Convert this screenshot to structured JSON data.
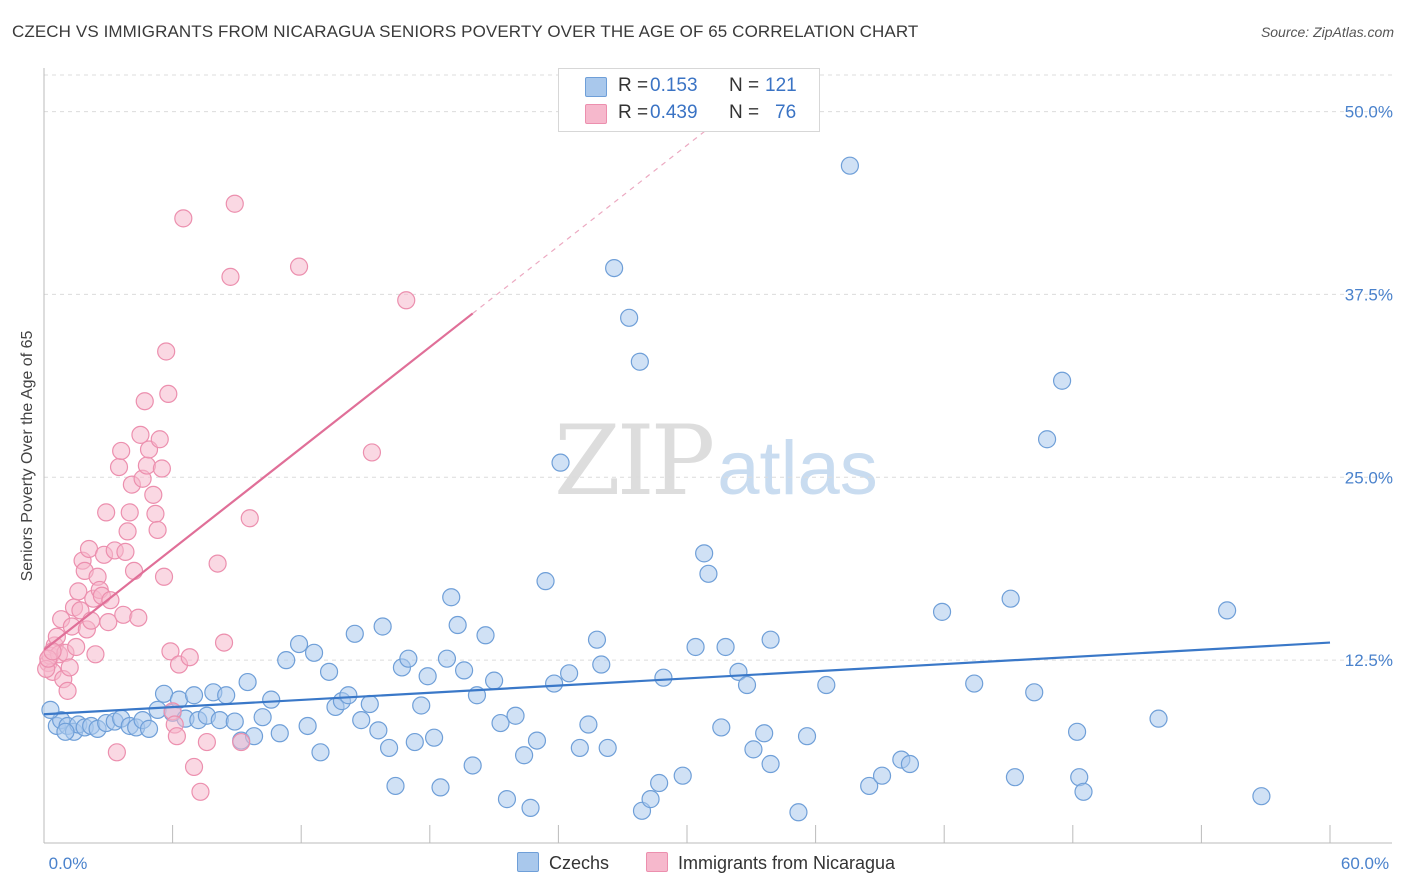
{
  "header": {
    "title": "CZECH VS IMMIGRANTS FROM NICARAGUA SENIORS POVERTY OVER THE AGE OF 65 CORRELATION CHART",
    "source": "Source: ZipAtlas.com"
  },
  "watermark": {
    "zip": "ZIP",
    "atlas": "atlas"
  },
  "legend": {
    "rows": [
      {
        "r_label": "R =",
        "r_value": "0.153",
        "n_label": "N =",
        "n_value": "121"
      },
      {
        "r_label": "R =",
        "r_value": "0.439",
        "n_label": "N =",
        "n_value": "76"
      }
    ]
  },
  "colors": {
    "blue_fill": "#a9c8ec",
    "blue_stroke": "#6f9fd8",
    "blue_line": "#3a78c8",
    "pink_fill": "#f6b8cc",
    "pink_stroke": "#ec8fae",
    "pink_line": "#e06f98",
    "grid": "#dcdcdc",
    "tick_text": "#4a82cc"
  },
  "chart_data": {
    "type": "scatter",
    "title": "CZECH VS IMMIGRANTS FROM NICARAGUA SENIORS POVERTY OVER THE AGE OF 65 CORRELATION CHART",
    "ylabel": "Seniors Poverty Over the Age of 65",
    "xlabel": "",
    "xlim": [
      0,
      60
    ],
    "ylim": [
      0,
      52.5
    ],
    "x_tick_labels": [
      "0.0%",
      "60.0%"
    ],
    "y_ticks": [
      12.5,
      25.0,
      37.5,
      50.0
    ],
    "y_tick_labels": [
      "12.5%",
      "25.0%",
      "37.5%",
      "50.0%"
    ],
    "grid": true,
    "legend_position": "bottom",
    "series": [
      {
        "name": "Czechs",
        "color": "#a9c8ec",
        "trend": {
          "x": [
            0,
            60
          ],
          "y": [
            8.8,
            13.7
          ]
        },
        "points": [
          [
            0.6,
            8.0
          ],
          [
            0.8,
            8.4
          ],
          [
            1.1,
            8.0
          ],
          [
            1.4,
            7.6
          ],
          [
            1.6,
            8.1
          ],
          [
            1.9,
            7.9
          ],
          [
            2.2,
            8.0
          ],
          [
            2.5,
            7.8
          ],
          [
            2.9,
            8.2
          ],
          [
            3.3,
            8.3
          ],
          [
            3.6,
            8.5
          ],
          [
            4.0,
            8.0
          ],
          [
            4.3,
            7.9
          ],
          [
            4.6,
            8.4
          ],
          [
            4.9,
            7.8
          ],
          [
            5.3,
            9.1
          ],
          [
            5.6,
            10.2
          ],
          [
            6.0,
            8.9
          ],
          [
            6.3,
            9.8
          ],
          [
            6.6,
            8.5
          ],
          [
            7.0,
            10.1
          ],
          [
            7.2,
            8.4
          ],
          [
            7.6,
            8.7
          ],
          [
            7.9,
            10.3
          ],
          [
            8.2,
            8.4
          ],
          [
            8.5,
            10.1
          ],
          [
            8.9,
            8.3
          ],
          [
            9.2,
            7.0
          ],
          [
            9.5,
            11.0
          ],
          [
            9.8,
            7.3
          ],
          [
            10.2,
            8.6
          ],
          [
            10.6,
            9.8
          ],
          [
            11.0,
            7.5
          ],
          [
            11.3,
            12.5
          ],
          [
            11.9,
            13.6
          ],
          [
            12.3,
            8.0
          ],
          [
            12.6,
            13.0
          ],
          [
            12.9,
            6.2
          ],
          [
            13.3,
            11.7
          ],
          [
            13.6,
            9.3
          ],
          [
            13.9,
            9.7
          ],
          [
            14.2,
            10.1
          ],
          [
            14.5,
            14.3
          ],
          [
            14.8,
            8.4
          ],
          [
            15.2,
            9.5
          ],
          [
            15.6,
            7.7
          ],
          [
            15.8,
            14.8
          ],
          [
            16.1,
            6.5
          ],
          [
            16.4,
            3.9
          ],
          [
            16.7,
            12.0
          ],
          [
            17.0,
            12.6
          ],
          [
            17.3,
            6.9
          ],
          [
            17.6,
            9.4
          ],
          [
            17.9,
            11.4
          ],
          [
            18.2,
            7.2
          ],
          [
            18.5,
            3.8
          ],
          [
            18.8,
            12.6
          ],
          [
            19.0,
            16.8
          ],
          [
            19.3,
            14.9
          ],
          [
            19.6,
            11.8
          ],
          [
            20.0,
            5.3
          ],
          [
            20.2,
            10.1
          ],
          [
            20.6,
            14.2
          ],
          [
            21.0,
            11.1
          ],
          [
            21.3,
            8.2
          ],
          [
            21.6,
            3.0
          ],
          [
            22.0,
            8.7
          ],
          [
            22.4,
            6.0
          ],
          [
            22.7,
            2.4
          ],
          [
            23.0,
            7.0
          ],
          [
            23.4,
            17.9
          ],
          [
            23.8,
            10.9
          ],
          [
            24.1,
            26.0
          ],
          [
            24.5,
            11.6
          ],
          [
            25.0,
            6.5
          ],
          [
            25.4,
            8.1
          ],
          [
            25.8,
            13.9
          ],
          [
            26.0,
            12.2
          ],
          [
            26.3,
            6.5
          ],
          [
            26.6,
            39.3
          ],
          [
            27.3,
            35.9
          ],
          [
            27.8,
            32.9
          ],
          [
            27.9,
            2.2
          ],
          [
            28.3,
            3.0
          ],
          [
            28.7,
            4.1
          ],
          [
            28.9,
            11.3
          ],
          [
            29.8,
            4.6
          ],
          [
            30.4,
            13.4
          ],
          [
            30.8,
            19.8
          ],
          [
            31.0,
            18.4
          ],
          [
            31.6,
            7.9
          ],
          [
            31.8,
            13.4
          ],
          [
            32.4,
            11.7
          ],
          [
            32.8,
            10.8
          ],
          [
            33.1,
            6.4
          ],
          [
            33.6,
            7.5
          ],
          [
            33.9,
            5.4
          ],
          [
            33.9,
            13.9
          ],
          [
            35.2,
            2.1
          ],
          [
            35.6,
            7.3
          ],
          [
            36.5,
            10.8
          ],
          [
            37.6,
            46.3
          ],
          [
            38.5,
            3.9
          ],
          [
            39.1,
            4.6
          ],
          [
            40.0,
            5.7
          ],
          [
            40.4,
            5.4
          ],
          [
            41.9,
            15.8
          ],
          [
            43.4,
            10.9
          ],
          [
            45.1,
            16.7
          ],
          [
            45.3,
            4.5
          ],
          [
            46.2,
            10.3
          ],
          [
            46.8,
            27.6
          ],
          [
            47.5,
            31.6
          ],
          [
            48.2,
            7.6
          ],
          [
            48.3,
            4.5
          ],
          [
            48.5,
            3.5
          ],
          [
            52.0,
            8.5
          ],
          [
            55.2,
            15.9
          ],
          [
            56.8,
            3.2
          ],
          [
            0.3,
            9.1
          ],
          [
            1.0,
            7.6
          ]
        ]
      },
      {
        "name": "Immigrants from Nicaragua",
        "color": "#f6b8cc",
        "trend": {
          "x": [
            0,
            20
          ],
          "y": [
            13.2,
            36.2
          ]
        },
        "trend_dashed": {
          "x": [
            20,
            32
          ],
          "y": [
            36.2,
            50.0
          ]
        },
        "points": [
          [
            0.2,
            12.3
          ],
          [
            0.3,
            12.8
          ],
          [
            0.4,
            11.7
          ],
          [
            0.5,
            13.5
          ],
          [
            0.6,
            14.1
          ],
          [
            0.7,
            12.9
          ],
          [
            0.8,
            15.3
          ],
          [
            0.9,
            11.2
          ],
          [
            1.0,
            13.0
          ],
          [
            1.1,
            10.4
          ],
          [
            1.2,
            12.0
          ],
          [
            1.3,
            14.8
          ],
          [
            1.4,
            16.1
          ],
          [
            1.5,
            13.4
          ],
          [
            1.6,
            17.2
          ],
          [
            1.7,
            15.9
          ],
          [
            1.8,
            19.3
          ],
          [
            1.9,
            18.6
          ],
          [
            2.0,
            14.6
          ],
          [
            2.1,
            20.1
          ],
          [
            2.2,
            15.2
          ],
          [
            2.3,
            16.7
          ],
          [
            2.4,
            12.9
          ],
          [
            2.5,
            18.2
          ],
          [
            2.6,
            17.3
          ],
          [
            2.7,
            16.9
          ],
          [
            2.8,
            19.7
          ],
          [
            2.9,
            22.6
          ],
          [
            3.0,
            15.1
          ],
          [
            3.1,
            16.6
          ],
          [
            3.3,
            20.0
          ],
          [
            3.4,
            6.2
          ],
          [
            3.5,
            25.7
          ],
          [
            3.6,
            26.8
          ],
          [
            3.7,
            15.6
          ],
          [
            3.8,
            19.9
          ],
          [
            3.9,
            21.3
          ],
          [
            4.0,
            22.6
          ],
          [
            4.1,
            24.5
          ],
          [
            4.2,
            18.6
          ],
          [
            4.4,
            15.4
          ],
          [
            4.5,
            27.9
          ],
          [
            4.6,
            24.9
          ],
          [
            4.7,
            30.2
          ],
          [
            4.8,
            25.8
          ],
          [
            4.9,
            26.9
          ],
          [
            5.1,
            23.8
          ],
          [
            5.2,
            22.5
          ],
          [
            5.3,
            21.4
          ],
          [
            5.4,
            27.6
          ],
          [
            5.5,
            25.6
          ],
          [
            5.6,
            18.2
          ],
          [
            5.7,
            33.6
          ],
          [
            5.8,
            30.7
          ],
          [
            5.9,
            13.1
          ],
          [
            6.0,
            9.0
          ],
          [
            6.1,
            8.1
          ],
          [
            6.2,
            7.3
          ],
          [
            6.3,
            12.2
          ],
          [
            6.5,
            42.7
          ],
          [
            6.8,
            12.7
          ],
          [
            7.0,
            5.2
          ],
          [
            7.3,
            3.5
          ],
          [
            7.6,
            6.9
          ],
          [
            8.1,
            19.1
          ],
          [
            8.4,
            13.7
          ],
          [
            8.7,
            38.7
          ],
          [
            8.9,
            43.7
          ],
          [
            9.2,
            6.9
          ],
          [
            9.6,
            22.2
          ],
          [
            11.9,
            39.4
          ],
          [
            15.3,
            26.7
          ],
          [
            16.9,
            37.1
          ],
          [
            0.1,
            11.9
          ],
          [
            0.2,
            12.6
          ],
          [
            0.4,
            13.1
          ]
        ]
      }
    ]
  },
  "bottom_legend": {
    "items": [
      "Czechs",
      "Immigrants from Nicaragua"
    ]
  }
}
